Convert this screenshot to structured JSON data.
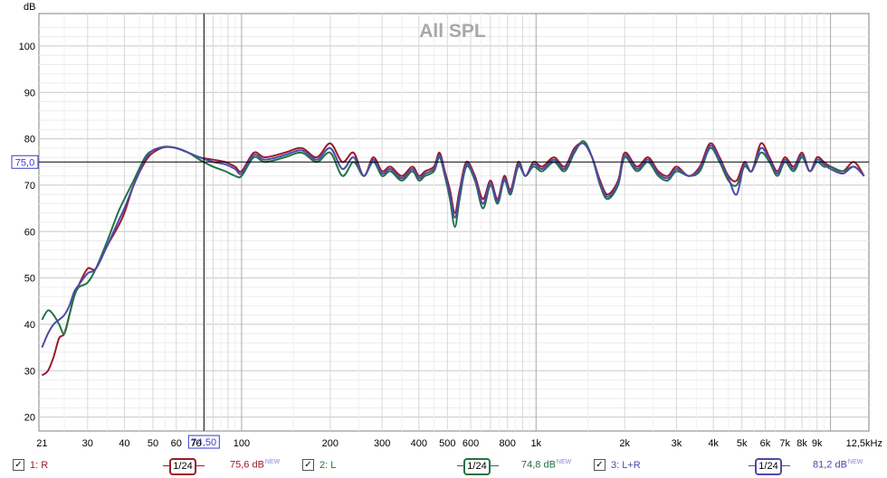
{
  "chart_data": {
    "type": "line",
    "title": "All SPL",
    "ylabel": "dB",
    "xlabel": "",
    "x_scale": "log",
    "xlim": [
      20.5,
      13500
    ],
    "ylim": [
      17,
      107
    ],
    "y_ticks": [
      20,
      30,
      40,
      50,
      60,
      70,
      80,
      90,
      100
    ],
    "x_tick_labels": [
      {
        "f": 21,
        "label": "21"
      },
      {
        "f": 30,
        "label": "30"
      },
      {
        "f": 40,
        "label": "40"
      },
      {
        "f": 50,
        "label": "50"
      },
      {
        "f": 60,
        "label": "60"
      },
      {
        "f": 70,
        "label": "70"
      },
      {
        "f": 100,
        "label": "100"
      },
      {
        "f": 200,
        "label": "200"
      },
      {
        "f": 300,
        "label": "300"
      },
      {
        "f": 400,
        "label": "400"
      },
      {
        "f": 500,
        "label": "500"
      },
      {
        "f": 600,
        "label": "600"
      },
      {
        "f": 800,
        "label": "800"
      },
      {
        "f": 1000,
        "label": "1k"
      },
      {
        "f": 2000,
        "label": "2k"
      },
      {
        "f": 3000,
        "label": "3k"
      },
      {
        "f": 4000,
        "label": "4k"
      },
      {
        "f": 5000,
        "label": "5k"
      },
      {
        "f": 6000,
        "label": "6k"
      },
      {
        "f": 7000,
        "label": "7k"
      },
      {
        "f": 8000,
        "label": "8k"
      },
      {
        "f": 9000,
        "label": "9k"
      },
      {
        "f": 12500,
        "label": "12,5kHz"
      }
    ],
    "cursor": {
      "x": 74.5,
      "y": 75.0,
      "x_label": "74,50",
      "y_label": "75,0"
    },
    "grid": true,
    "legend_placement": "bottom",
    "series": [
      {
        "name": "1: R",
        "color": "#9b1b2a",
        "smoothing": "1/24",
        "level": "75,6 dB",
        "points": [
          [
            21,
            29
          ],
          [
            22,
            30
          ],
          [
            23,
            33
          ],
          [
            24,
            37
          ],
          [
            25,
            38
          ],
          [
            26,
            42
          ],
          [
            27,
            46
          ],
          [
            28,
            48.5
          ],
          [
            30,
            52
          ],
          [
            32,
            52
          ],
          [
            35,
            57
          ],
          [
            38,
            61
          ],
          [
            40,
            64
          ],
          [
            43,
            70
          ],
          [
            47,
            75
          ],
          [
            50,
            77
          ],
          [
            55,
            78.2
          ],
          [
            60,
            78
          ],
          [
            66,
            77
          ],
          [
            72,
            76
          ],
          [
            80,
            75.5
          ],
          [
            88,
            75
          ],
          [
            95,
            74
          ],
          [
            100,
            73
          ],
          [
            110,
            77
          ],
          [
            120,
            76
          ],
          [
            140,
            77
          ],
          [
            160,
            78
          ],
          [
            180,
            76
          ],
          [
            200,
            79
          ],
          [
            220,
            75
          ],
          [
            240,
            77
          ],
          [
            260,
            72
          ],
          [
            280,
            76
          ],
          [
            300,
            73
          ],
          [
            320,
            74
          ],
          [
            350,
            72
          ],
          [
            380,
            74
          ],
          [
            400,
            72
          ],
          [
            420,
            73
          ],
          [
            450,
            74
          ],
          [
            470,
            77
          ],
          [
            490,
            73
          ],
          [
            510,
            69
          ],
          [
            530,
            64
          ],
          [
            550,
            69
          ],
          [
            580,
            75
          ],
          [
            620,
            72
          ],
          [
            660,
            67
          ],
          [
            700,
            71
          ],
          [
            740,
            67
          ],
          [
            780,
            72
          ],
          [
            820,
            69
          ],
          [
            870,
            75
          ],
          [
            920,
            72
          ],
          [
            980,
            75
          ],
          [
            1050,
            74
          ],
          [
            1150,
            76
          ],
          [
            1250,
            74
          ],
          [
            1350,
            78
          ],
          [
            1450,
            79
          ],
          [
            1550,
            76
          ],
          [
            1650,
            71
          ],
          [
            1750,
            68
          ],
          [
            1900,
            71
          ],
          [
            2000,
            77
          ],
          [
            2200,
            74
          ],
          [
            2400,
            76
          ],
          [
            2600,
            73
          ],
          [
            2800,
            72
          ],
          [
            3000,
            74
          ],
          [
            3300,
            72
          ],
          [
            3600,
            74
          ],
          [
            3900,
            79
          ],
          [
            4200,
            76
          ],
          [
            4500,
            72
          ],
          [
            4800,
            71
          ],
          [
            5100,
            75
          ],
          [
            5400,
            73
          ],
          [
            5800,
            79
          ],
          [
            6200,
            76
          ],
          [
            6600,
            73
          ],
          [
            7000,
            76
          ],
          [
            7500,
            74
          ],
          [
            8000,
            77
          ],
          [
            8500,
            73
          ],
          [
            9000,
            76
          ],
          [
            9500,
            75
          ],
          [
            10000,
            74
          ],
          [
            11000,
            73
          ],
          [
            12000,
            75
          ],
          [
            13000,
            72
          ]
        ]
      },
      {
        "name": "2: L",
        "color": "#217346",
        "smoothing": "1/24",
        "level": "74,8 dB",
        "points": [
          [
            21,
            41
          ],
          [
            22,
            43
          ],
          [
            23,
            42
          ],
          [
            24,
            40
          ],
          [
            25,
            38
          ],
          [
            26,
            42
          ],
          [
            27,
            46
          ],
          [
            28,
            48
          ],
          [
            30,
            49
          ],
          [
            32,
            52
          ],
          [
            35,
            58
          ],
          [
            38,
            64
          ],
          [
            40,
            67
          ],
          [
            43,
            71
          ],
          [
            47,
            76
          ],
          [
            50,
            77.5
          ],
          [
            55,
            78.3
          ],
          [
            60,
            78
          ],
          [
            66,
            77
          ],
          [
            72,
            75.5
          ],
          [
            80,
            74
          ],
          [
            88,
            73
          ],
          [
            95,
            72
          ],
          [
            100,
            72
          ],
          [
            110,
            76
          ],
          [
            120,
            75
          ],
          [
            140,
            76
          ],
          [
            160,
            77
          ],
          [
            180,
            75
          ],
          [
            200,
            77
          ],
          [
            220,
            72
          ],
          [
            240,
            75
          ],
          [
            260,
            72
          ],
          [
            280,
            75
          ],
          [
            300,
            72
          ],
          [
            320,
            73
          ],
          [
            350,
            71
          ],
          [
            380,
            73
          ],
          [
            400,
            71
          ],
          [
            420,
            72
          ],
          [
            450,
            73
          ],
          [
            470,
            76
          ],
          [
            490,
            72
          ],
          [
            510,
            67
          ],
          [
            530,
            61
          ],
          [
            550,
            67
          ],
          [
            580,
            74
          ],
          [
            620,
            71
          ],
          [
            660,
            65
          ],
          [
            700,
            70
          ],
          [
            740,
            66
          ],
          [
            780,
            71
          ],
          [
            820,
            68
          ],
          [
            870,
            74
          ],
          [
            920,
            72
          ],
          [
            980,
            74
          ],
          [
            1050,
            73
          ],
          [
            1150,
            75
          ],
          [
            1250,
            73
          ],
          [
            1350,
            77
          ],
          [
            1450,
            79.5
          ],
          [
            1550,
            76
          ],
          [
            1650,
            70
          ],
          [
            1750,
            67
          ],
          [
            1900,
            70
          ],
          [
            2000,
            76
          ],
          [
            2200,
            73
          ],
          [
            2400,
            75
          ],
          [
            2600,
            72
          ],
          [
            2800,
            71
          ],
          [
            3000,
            73
          ],
          [
            3300,
            72
          ],
          [
            3600,
            73
          ],
          [
            3900,
            78
          ],
          [
            4200,
            75
          ],
          [
            4500,
            71
          ],
          [
            4800,
            70
          ],
          [
            5100,
            74
          ],
          [
            5400,
            73
          ],
          [
            5800,
            77
          ],
          [
            6200,
            75
          ],
          [
            6600,
            72
          ],
          [
            7000,
            75
          ],
          [
            7500,
            73
          ],
          [
            8000,
            76
          ],
          [
            8500,
            73
          ],
          [
            9000,
            75
          ],
          [
            9500,
            74
          ],
          [
            10000,
            74
          ],
          [
            11000,
            73
          ],
          [
            12000,
            74
          ],
          [
            13000,
            72
          ]
        ]
      },
      {
        "name": "3: L+R",
        "color": "#4b4ba8",
        "smoothing": "1/24",
        "level": "81,2 dB",
        "points": [
          [
            21,
            35
          ],
          [
            22,
            38
          ],
          [
            23,
            40
          ],
          [
            24,
            41
          ],
          [
            25,
            42
          ],
          [
            26,
            44
          ],
          [
            27,
            47
          ],
          [
            28,
            48.5
          ],
          [
            30,
            51
          ],
          [
            32,
            52
          ],
          [
            35,
            57
          ],
          [
            38,
            62
          ],
          [
            40,
            65
          ],
          [
            43,
            70
          ],
          [
            47,
            75.5
          ],
          [
            50,
            77.5
          ],
          [
            55,
            78.2
          ],
          [
            60,
            78
          ],
          [
            66,
            77
          ],
          [
            72,
            76
          ],
          [
            80,
            75
          ],
          [
            88,
            74.5
          ],
          [
            95,
            73.5
          ],
          [
            100,
            72.5
          ],
          [
            110,
            76.5
          ],
          [
            120,
            75.5
          ],
          [
            140,
            76.5
          ],
          [
            160,
            77.5
          ],
          [
            180,
            75.5
          ],
          [
            200,
            78
          ],
          [
            220,
            73.5
          ],
          [
            240,
            76
          ],
          [
            260,
            72
          ],
          [
            280,
            75.5
          ],
          [
            300,
            72.5
          ],
          [
            320,
            73.5
          ],
          [
            350,
            71.5
          ],
          [
            380,
            73.5
          ],
          [
            400,
            71.5
          ],
          [
            420,
            72.5
          ],
          [
            450,
            73.5
          ],
          [
            470,
            76.5
          ],
          [
            490,
            72.5
          ],
          [
            510,
            68
          ],
          [
            530,
            63
          ],
          [
            550,
            68
          ],
          [
            580,
            74.5
          ],
          [
            620,
            71.5
          ],
          [
            660,
            66
          ],
          [
            700,
            70.5
          ],
          [
            740,
            66.5
          ],
          [
            780,
            71.5
          ],
          [
            820,
            68.5
          ],
          [
            870,
            74.5
          ],
          [
            920,
            72
          ],
          [
            980,
            74.5
          ],
          [
            1050,
            73.5
          ],
          [
            1150,
            75.5
          ],
          [
            1250,
            73.5
          ],
          [
            1350,
            77.5
          ],
          [
            1450,
            79
          ],
          [
            1550,
            76
          ],
          [
            1650,
            70.5
          ],
          [
            1750,
            67.5
          ],
          [
            1900,
            70.5
          ],
          [
            2000,
            76.5
          ],
          [
            2200,
            73.5
          ],
          [
            2400,
            75.5
          ],
          [
            2600,
            72.5
          ],
          [
            2800,
            71.5
          ],
          [
            3000,
            73.5
          ],
          [
            3300,
            72
          ],
          [
            3600,
            73.5
          ],
          [
            3900,
            78.5
          ],
          [
            4200,
            75.5
          ],
          [
            4500,
            71.5
          ],
          [
            4800,
            68
          ],
          [
            5100,
            74.5
          ],
          [
            5400,
            73
          ],
          [
            5800,
            78
          ],
          [
            6200,
            75.5
          ],
          [
            6600,
            72.5
          ],
          [
            7000,
            75.5
          ],
          [
            7500,
            73.5
          ],
          [
            8000,
            76.5
          ],
          [
            8500,
            73
          ],
          [
            9000,
            75.5
          ],
          [
            9500,
            74.5
          ],
          [
            10000,
            73.5
          ],
          [
            11000,
            72.5
          ],
          [
            12000,
            74
          ],
          [
            13000,
            72
          ]
        ]
      }
    ]
  },
  "legend": {
    "new_tag": "NEW",
    "check": "✓",
    "items": [
      {
        "name": "1: R",
        "smoothing": "1/24",
        "level": "75,6 dB",
        "color": "#9b1b2a"
      },
      {
        "name": "2: L",
        "smoothing": "1/24",
        "level": "74,8 dB",
        "color": "#217346"
      },
      {
        "name": "3: L+R",
        "smoothing": "1/24",
        "level": "81,2 dB",
        "color": "#4b4ba8"
      }
    ]
  }
}
